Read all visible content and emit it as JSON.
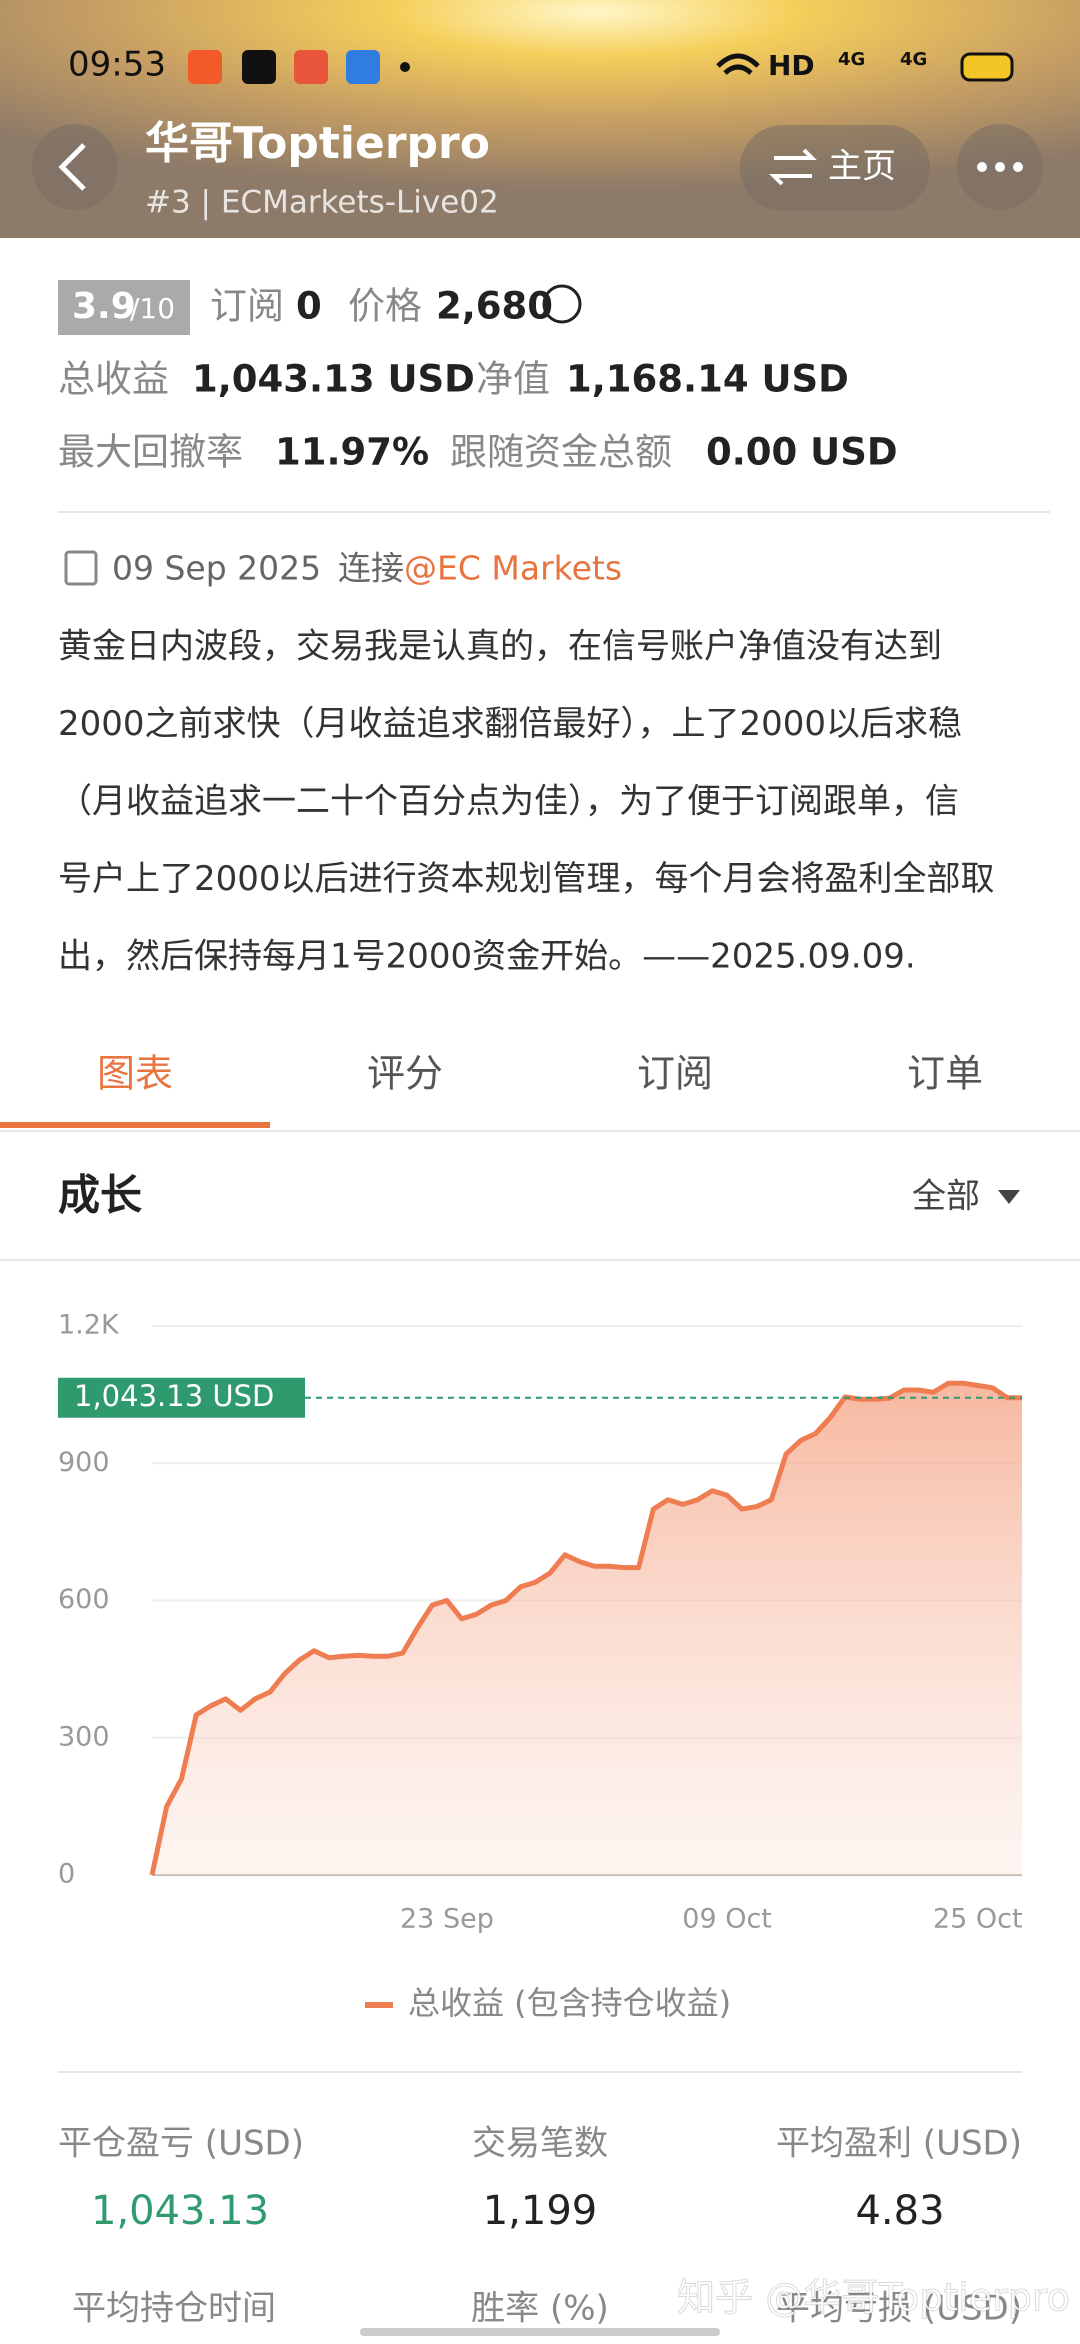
{
  "status": {
    "time": "09:53",
    "hd": "HD",
    "net": "4G"
  },
  "header": {
    "title": "华哥Toptierpro",
    "subtitle": "#3 | ECMarkets-Live02",
    "home_button": "主页"
  },
  "summary": {
    "rating": "3.9",
    "rating_max": "/10",
    "subscribe_label": "订阅",
    "subscribe_value": "0",
    "price_label": "价格",
    "price_value": "2,680",
    "total_label": "总收益",
    "total_value": "1,043.13 USD",
    "equity_label": "净值",
    "equity_value": "1,168.14 USD",
    "drawdown_label": "最大回撤率",
    "drawdown_value": "11.97%",
    "follow_label": "跟随资金总额",
    "follow_value": "0.00 USD"
  },
  "connection": {
    "date": "09 Sep 2025",
    "label": "连接",
    "broker": "@EC Markets"
  },
  "description_lines": [
    "黄金日内波段，交易我是认真的，在信号账户净值没有达到",
    "2000之前求快（月收益追求翻倍最好），上了2000以后求稳",
    "（月收益追求一二十个百分点为佳），为了便于订阅跟单，信",
    "号户上了2000以后进行资本规划管理，每个月会将盈利全部取",
    "出，然后保持每月1号2000资金开始。——2025.09.09."
  ],
  "tabs": [
    "图表",
    "评分",
    "订阅",
    "订单"
  ],
  "section": {
    "title": "成长",
    "filter": "全部"
  },
  "chart_data": {
    "type": "area",
    "categories": [
      null,
      null,
      null,
      null,
      null,
      null,
      null,
      null,
      null,
      null,
      null,
      null,
      null,
      null,
      null,
      null,
      null,
      null,
      null,
      null,
      "23 Sep",
      null,
      null,
      null,
      null,
      null,
      null,
      null,
      null,
      null,
      null,
      null,
      null,
      null,
      null,
      null,
      null,
      null,
      null,
      "09 Oct",
      null,
      null,
      null,
      null,
      null,
      null,
      null,
      null,
      null,
      null,
      null,
      null,
      null,
      null,
      null,
      null,
      "25 Oct",
      null,
      null,
      null
    ],
    "series": [
      {
        "name": "总收益 (包含持仓收益)",
        "color": "#ee7d52",
        "values": [
          0,
          150,
          210,
          350,
          370,
          385,
          360,
          385,
          400,
          440,
          470,
          490,
          475,
          478,
          480,
          478,
          478,
          485,
          540,
          590,
          600,
          560,
          570,
          590,
          600,
          630,
          640,
          660,
          700,
          685,
          675,
          675,
          672,
          672,
          800,
          820,
          810,
          820,
          840,
          830,
          800,
          805,
          820,
          920,
          950,
          965,
          1000,
          1045,
          1040,
          1040,
          1042,
          1060,
          1060,
          1055,
          1075,
          1075,
          1070,
          1065,
          1043,
          1043.13
        ]
      }
    ],
    "last_label": "1,043.13 USD",
    "last_color": "#2e9a6e",
    "ylim": [
      0,
      1200
    ],
    "yticks": [
      0,
      300,
      600,
      900,
      {
        "value": 1200,
        "label": "1.2K"
      }
    ],
    "grid": true
  },
  "stats": {
    "labels": [
      "平仓盈亏 (USD)",
      "交易笔数",
      "平均盈利 (USD)"
    ],
    "values": [
      "1,043.13",
      "1,199",
      "4.83"
    ],
    "labels2": [
      "平均持仓时间",
      "胜率 (%)",
      "平均亏损 (USD)"
    ]
  },
  "watermark": "知乎 @华哥Toptierpro"
}
